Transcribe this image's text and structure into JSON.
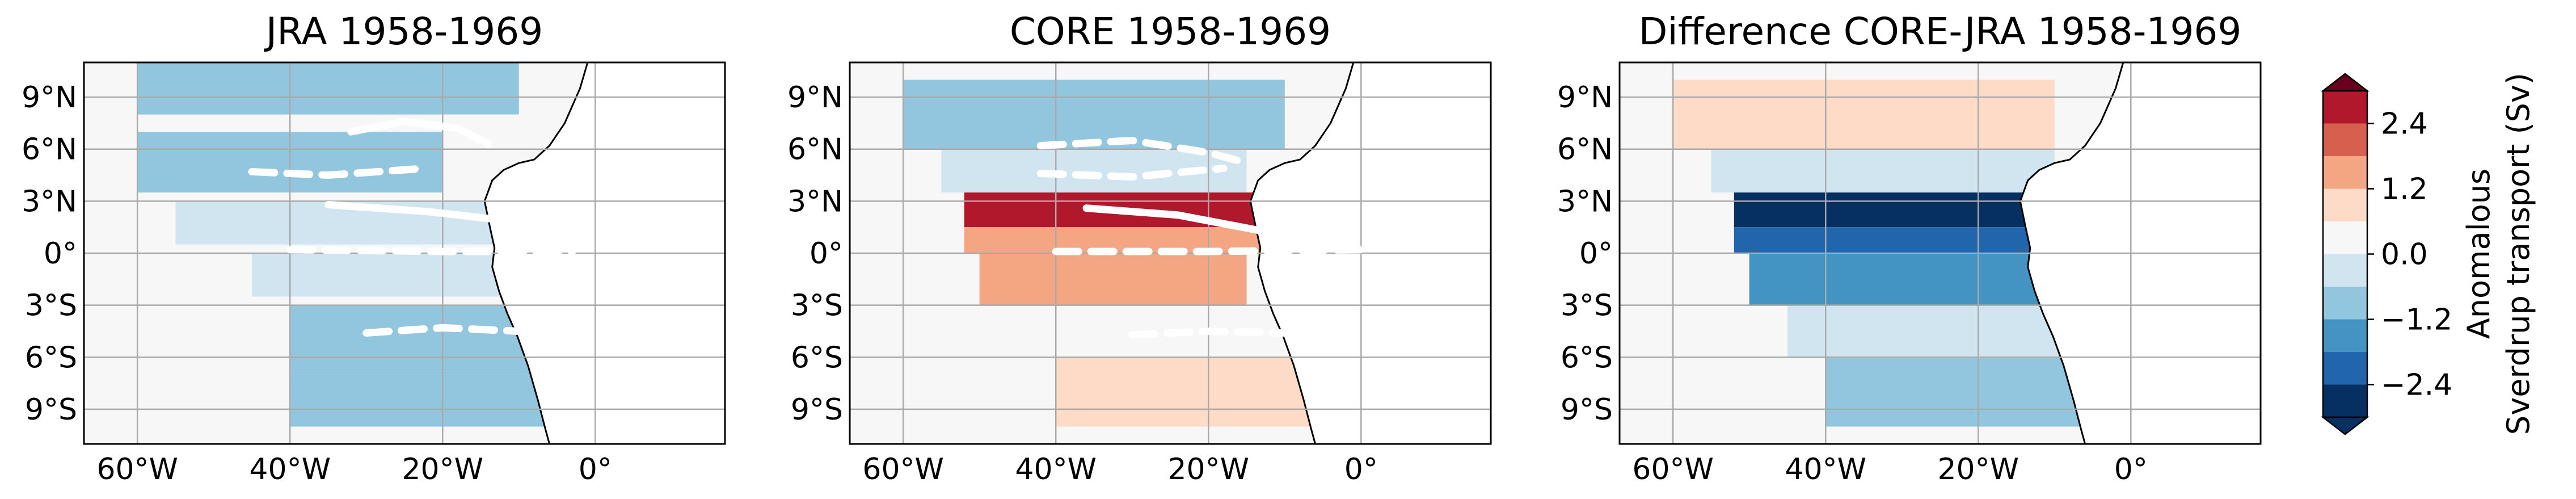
{
  "figure": {
    "panels": [
      {
        "title": "JRA 1958-1969",
        "field": "jra"
      },
      {
        "title": "CORE 1958-1969",
        "field": "core"
      },
      {
        "title": "Difference CORE-JRA 1958-1969",
        "field": "diff"
      }
    ],
    "colorbar": {
      "label_line1": "Anomalous",
      "label_line2": "Sverdrup transport (Sv)",
      "levels": [
        -3.0,
        -2.4,
        -1.8,
        -1.2,
        -0.6,
        0.0,
        0.6,
        1.2,
        1.8,
        2.4,
        3.0
      ],
      "colors": [
        "#053061",
        "#2166ac",
        "#4393c3",
        "#92c5de",
        "#d1e5f0",
        "#f7f7f7",
        "#fddbc7",
        "#f4a582",
        "#d6604d",
        "#b2182b",
        "#67001f"
      ],
      "tick_labels": [
        "2.4",
        "1.2",
        "0.0",
        "−1.2",
        "−2.4"
      ],
      "tick_values": [
        2.4,
        1.2,
        0.0,
        -1.2,
        -2.4
      ]
    }
  },
  "chart_data": [
    {
      "type": "heatmap",
      "title": "JRA 1958-1969",
      "xlabel": "",
      "ylabel": "",
      "x_ticks": [
        "60°W",
        "40°W",
        "20°W",
        "0°"
      ],
      "x_tick_values": [
        -60,
        -40,
        -20,
        0
      ],
      "y_ticks": [
        "9°N",
        "6°N",
        "3°N",
        "0°",
        "3°S",
        "6°S",
        "9°S"
      ],
      "y_tick_values": [
        9,
        6,
        3,
        0,
        -3,
        -6,
        -9
      ],
      "xlim": [
        -67,
        17
      ],
      "ylim": [
        -11,
        11
      ],
      "grid": true,
      "bands": [
        {
          "lon": [
            -60,
            -10
          ],
          "lat": [
            8,
            11
          ],
          "value": -0.7
        },
        {
          "lon": [
            -60,
            -20
          ],
          "lat": [
            3.5,
            7
          ],
          "value": -0.8
        },
        {
          "lon": [
            -20,
            10
          ],
          "lat": [
            4,
            8
          ],
          "value": 0.4
        },
        {
          "lon": [
            -55,
            -8
          ],
          "lat": [
            0.5,
            3
          ],
          "value": -0.4
        },
        {
          "lon": [
            -45,
            -5
          ],
          "lat": [
            -2.5,
            0
          ],
          "value": -0.3
        },
        {
          "lon": [
            -40,
            5
          ],
          "lat": [
            -7,
            -3
          ],
          "value": -0.8
        },
        {
          "lon": [
            -40,
            5
          ],
          "lat": [
            -10,
            -7
          ],
          "value": -1.0
        }
      ],
      "contour_lines": [
        {
          "style": "solid",
          "points": [
            [
              -32,
              7
            ],
            [
              -25,
              7.6
            ],
            [
              -18,
              7.2
            ],
            [
              -14,
              6.3
            ]
          ]
        },
        {
          "style": "dashed",
          "points": [
            [
              -45,
              4.7
            ],
            [
              -35,
              4.5
            ],
            [
              -22,
              4.9
            ]
          ]
        },
        {
          "style": "solid",
          "points": [
            [
              -35,
              2.8
            ],
            [
              -22,
              2.4
            ],
            [
              -10,
              1.8
            ]
          ]
        },
        {
          "style": "dashed",
          "points": [
            [
              -40,
              0.2
            ],
            [
              -20,
              0.1
            ],
            [
              -3,
              0.1
            ]
          ]
        },
        {
          "style": "dashed",
          "points": [
            [
              -30,
              -4.6
            ],
            [
              -20,
              -4.3
            ],
            [
              -10,
              -4.5
            ]
          ]
        }
      ]
    },
    {
      "type": "heatmap",
      "title": "CORE 1958-1969",
      "xlabel": "",
      "ylabel": "",
      "x_ticks": [
        "60°W",
        "40°W",
        "20°W",
        "0°"
      ],
      "x_tick_values": [
        -60,
        -40,
        -20,
        0
      ],
      "y_ticks": [
        "9°N",
        "6°N",
        "3°N",
        "0°",
        "3°S",
        "6°S",
        "9°S"
      ],
      "y_tick_values": [
        9,
        6,
        3,
        0,
        -3,
        -6,
        -9
      ],
      "xlim": [
        -67,
        17
      ],
      "ylim": [
        -11,
        11
      ],
      "grid": true,
      "bands": [
        {
          "lon": [
            -60,
            -10
          ],
          "lat": [
            6,
            10
          ],
          "value": -1.2
        },
        {
          "lon": [
            -55,
            -15
          ],
          "lat": [
            3.5,
            6
          ],
          "value": -0.6
        },
        {
          "lon": [
            -52,
            -5
          ],
          "lat": [
            1.5,
            3.5
          ],
          "value": 2.6
        },
        {
          "lon": [
            -52,
            -5
          ],
          "lat": [
            0,
            1.5
          ],
          "value": 1.6
        },
        {
          "lon": [
            -50,
            -15
          ],
          "lat": [
            -3,
            0
          ],
          "value": 1.3
        },
        {
          "lon": [
            -45,
            -5
          ],
          "lat": [
            -6,
            -3
          ],
          "value": 0.5
        },
        {
          "lon": [
            -40,
            5
          ],
          "lat": [
            -10,
            -6
          ],
          "value": 0.6
        }
      ],
      "contour_lines": [
        {
          "style": "dashed",
          "points": [
            [
              -42,
              6.2
            ],
            [
              -30,
              6.5
            ],
            [
              -20,
              5.8
            ],
            [
              -15,
              5.2
            ]
          ]
        },
        {
          "style": "dashed",
          "points": [
            [
              -42,
              4.6
            ],
            [
              -30,
              4.4
            ],
            [
              -18,
              4.9
            ]
          ]
        },
        {
          "style": "solid",
          "points": [
            [
              -36,
              2.6
            ],
            [
              -24,
              2.2
            ],
            [
              -12,
              1.2
            ]
          ]
        },
        {
          "style": "dashed",
          "points": [
            [
              -40,
              0.1
            ],
            [
              -20,
              0.1
            ],
            [
              0,
              0.2
            ]
          ]
        },
        {
          "style": "dashed",
          "points": [
            [
              -30,
              -4.7
            ],
            [
              -20,
              -4.5
            ],
            [
              -10,
              -4.6
            ]
          ]
        }
      ]
    },
    {
      "type": "heatmap",
      "title": "Difference CORE-JRA 1958-1969",
      "xlabel": "",
      "ylabel": "",
      "x_ticks": [
        "60°W",
        "40°W",
        "20°W",
        "0°"
      ],
      "x_tick_values": [
        -60,
        -40,
        -20,
        0
      ],
      "y_ticks": [
        "9°N",
        "6°N",
        "3°N",
        "0°",
        "3°S",
        "6°S",
        "9°S"
      ],
      "y_tick_values": [
        9,
        6,
        3,
        0,
        -3,
        -6,
        -9
      ],
      "xlim": [
        -67,
        17
      ],
      "ylim": [
        -11,
        11
      ],
      "grid": true,
      "bands": [
        {
          "lon": [
            -60,
            -10
          ],
          "lat": [
            6,
            10
          ],
          "value": 0.6
        },
        {
          "lon": [
            -55,
            -10
          ],
          "lat": [
            3.5,
            6
          ],
          "value": -0.3
        },
        {
          "lon": [
            -52,
            -5
          ],
          "lat": [
            1.5,
            3.5
          ],
          "value": -2.8
        },
        {
          "lon": [
            -52,
            -5
          ],
          "lat": [
            0,
            1.5
          ],
          "value": -1.9
        },
        {
          "lon": [
            -50,
            -10
          ],
          "lat": [
            -3,
            0
          ],
          "value": -1.3
        },
        {
          "lon": [
            -45,
            -5
          ],
          "lat": [
            -6,
            -3
          ],
          "value": -0.6
        },
        {
          "lon": [
            -40,
            5
          ],
          "lat": [
            -10,
            -6
          ],
          "value": -1.2
        }
      ],
      "contour_lines": []
    }
  ]
}
